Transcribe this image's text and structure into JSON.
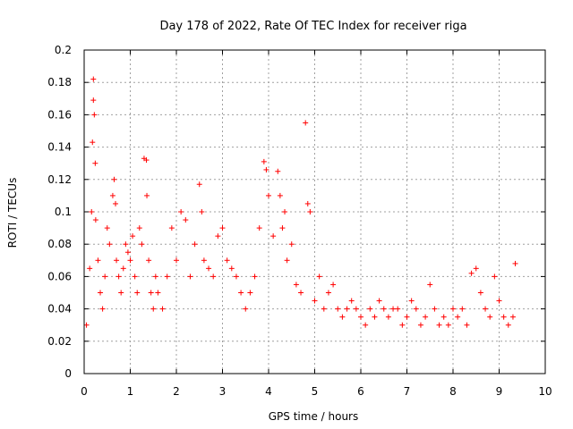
{
  "chart_data": {
    "type": "scatter",
    "title": "Day 178 of 2022, Rate Of TEC Index for receiver riga",
    "xlabel": "GPS time / hours",
    "ylabel": "ROTI / TECUs",
    "xlim": [
      0,
      10
    ],
    "ylim": [
      0,
      0.2
    ],
    "xticks": [
      "0",
      "1",
      "2",
      "3",
      "4",
      "5",
      "6",
      "7",
      "8",
      "9",
      "10"
    ],
    "yticks": [
      "0",
      "0.02",
      "0.04",
      "0.06",
      "0.08",
      "0.1",
      "0.12",
      "0.14",
      "0.16",
      "0.18",
      "0.2"
    ],
    "grid": true,
    "marker": "+",
    "series_color": "#ff0000",
    "series": [
      {
        "name": "ROTI",
        "x": [
          0.05,
          0.12,
          0.2,
          0.2,
          0.22,
          0.24,
          0.18,
          0.16,
          0.25,
          0.3,
          0.35,
          0.4,
          0.45,
          0.5,
          0.55,
          0.62,
          0.65,
          0.68,
          0.7,
          0.75,
          0.8,
          0.85,
          0.9,
          0.95,
          1.0,
          1.05,
          1.1,
          1.15,
          1.2,
          1.25,
          1.3,
          1.35,
          1.36,
          1.4,
          1.45,
          1.5,
          1.55,
          1.6,
          1.7,
          1.8,
          1.9,
          2.0,
          2.1,
          2.2,
          2.3,
          2.4,
          2.5,
          2.55,
          2.6,
          2.7,
          2.8,
          2.9,
          3.0,
          3.1,
          3.2,
          3.3,
          3.4,
          3.5,
          3.6,
          3.7,
          3.8,
          3.9,
          3.95,
          4.0,
          4.1,
          4.2,
          4.25,
          4.3,
          4.35,
          4.4,
          4.5,
          4.6,
          4.7,
          4.8,
          4.85,
          4.9,
          5.0,
          5.1,
          5.2,
          5.3,
          5.4,
          5.5,
          5.6,
          5.7,
          5.8,
          5.9,
          6.0,
          6.1,
          6.2,
          6.3,
          6.4,
          6.5,
          6.6,
          6.7,
          6.8,
          6.9,
          7.0,
          7.1,
          7.2,
          7.3,
          7.4,
          7.5,
          7.6,
          7.7,
          7.8,
          7.9,
          8.0,
          8.1,
          8.2,
          8.3,
          8.4,
          8.5,
          8.6,
          8.7,
          8.8,
          8.9,
          9.0,
          9.1,
          9.2,
          9.3,
          9.35
        ],
        "y": [
          0.03,
          0.065,
          0.182,
          0.169,
          0.16,
          0.13,
          0.143,
          0.1,
          0.095,
          0.07,
          0.05,
          0.04,
          0.06,
          0.09,
          0.08,
          0.11,
          0.12,
          0.105,
          0.07,
          0.06,
          0.05,
          0.065,
          0.08,
          0.075,
          0.07,
          0.085,
          0.06,
          0.05,
          0.09,
          0.08,
          0.133,
          0.132,
          0.11,
          0.07,
          0.05,
          0.04,
          0.06,
          0.05,
          0.04,
          0.06,
          0.09,
          0.07,
          0.1,
          0.095,
          0.06,
          0.08,
          0.117,
          0.1,
          0.07,
          0.065,
          0.06,
          0.085,
          0.09,
          0.07,
          0.065,
          0.06,
          0.05,
          0.04,
          0.05,
          0.06,
          0.09,
          0.131,
          0.126,
          0.11,
          0.085,
          0.125,
          0.11,
          0.09,
          0.1,
          0.07,
          0.08,
          0.055,
          0.05,
          0.155,
          0.105,
          0.1,
          0.045,
          0.06,
          0.04,
          0.05,
          0.055,
          0.04,
          0.035,
          0.04,
          0.045,
          0.04,
          0.035,
          0.03,
          0.04,
          0.035,
          0.045,
          0.04,
          0.035,
          0.04,
          0.04,
          0.03,
          0.035,
          0.045,
          0.04,
          0.03,
          0.035,
          0.055,
          0.04,
          0.03,
          0.035,
          0.03,
          0.04,
          0.035,
          0.04,
          0.03,
          0.062,
          0.065,
          0.05,
          0.04,
          0.035,
          0.06,
          0.045,
          0.035,
          0.03,
          0.035,
          0.068
        ]
      }
    ]
  }
}
